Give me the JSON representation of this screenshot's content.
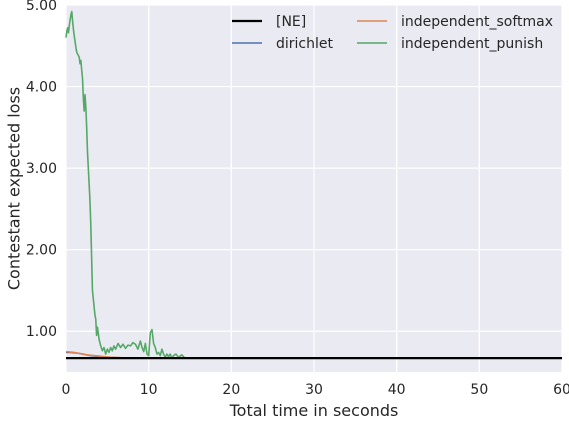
{
  "chart_data": {
    "type": "line",
    "xlabel": "Total time in seconds",
    "ylabel": "Contestant expected loss",
    "xlim": [
      0,
      60
    ],
    "ylim": [
      0.5,
      5.0
    ],
    "x_ticks": [
      0,
      10,
      20,
      30,
      40,
      50,
      60
    ],
    "x_tick_labels": [
      "0",
      "10",
      "20",
      "30",
      "40",
      "50",
      "60"
    ],
    "y_ticks": [
      1.0,
      2.0,
      3.0,
      4.0,
      5.0
    ],
    "y_tick_labels": [
      "1.00",
      "2.00",
      "3.00",
      "4.00",
      "5.00"
    ],
    "grid": true,
    "legend_position": "top-right",
    "legend_columns": 2,
    "background_color": "#eaeaf2",
    "series": [
      {
        "name": "[NE]",
        "color": "#000000",
        "x": [
          0,
          60
        ],
        "y": [
          0.67,
          0.67
        ]
      },
      {
        "name": "dirichlet",
        "color": "#4c72b0",
        "x": [
          0,
          0.5,
          1,
          1.5,
          2,
          2.5,
          3,
          3.5,
          4,
          4.5,
          5,
          5.5,
          6,
          6.5,
          7
        ],
        "y": [
          0.74,
          0.74,
          0.735,
          0.73,
          0.72,
          0.71,
          0.7,
          0.695,
          0.69,
          0.685,
          0.68,
          0.678,
          0.676,
          0.674,
          0.672
        ]
      },
      {
        "name": "independent_softmax",
        "color": "#dd8452",
        "x": [
          0,
          0.5,
          1,
          1.5,
          2,
          2.5,
          3,
          3.5,
          4,
          4.5,
          5,
          5.5,
          6,
          6.5,
          7
        ],
        "y": [
          0.75,
          0.745,
          0.74,
          0.73,
          0.72,
          0.71,
          0.705,
          0.7,
          0.695,
          0.69,
          0.685,
          0.68,
          0.678,
          0.676,
          0.674
        ]
      },
      {
        "name": "independent_punish",
        "color": "#55a868",
        "x": [
          0,
          0.1,
          0.2,
          0.3,
          0.4,
          0.5,
          0.6,
          0.7,
          0.8,
          0.9,
          1.0,
          1.1,
          1.2,
          1.3,
          1.4,
          1.5,
          1.6,
          1.7,
          1.8,
          1.9,
          2.0,
          2.1,
          2.2,
          2.3,
          2.4,
          2.5,
          2.6,
          2.7,
          2.8,
          2.9,
          3.0,
          3.1,
          3.2,
          3.3,
          3.4,
          3.5,
          3.6,
          3.7,
          3.8,
          3.9,
          4.0,
          4.2,
          4.4,
          4.6,
          4.8,
          5.0,
          5.2,
          5.4,
          5.6,
          5.8,
          6.0,
          6.3,
          6.6,
          6.9,
          7.2,
          7.5,
          7.8,
          8.1,
          8.4,
          8.7,
          9.0,
          9.2,
          9.4,
          9.6,
          9.8,
          10.0,
          10.2,
          10.4,
          10.6,
          10.8,
          11.0,
          11.2,
          11.4,
          11.6,
          11.8,
          12.0,
          12.2,
          12.4,
          12.6,
          12.8,
          13.0,
          13.3,
          13.6,
          14.0,
          14.3
        ],
        "y": [
          4.6,
          4.68,
          4.72,
          4.66,
          4.75,
          4.82,
          4.88,
          4.92,
          4.8,
          4.7,
          4.62,
          4.55,
          4.48,
          4.42,
          4.4,
          4.38,
          4.36,
          4.28,
          4.32,
          4.2,
          4.1,
          3.85,
          3.7,
          3.9,
          3.75,
          3.5,
          3.2,
          3.0,
          2.8,
          2.6,
          2.3,
          1.9,
          1.5,
          1.4,
          1.3,
          1.2,
          1.15,
          0.95,
          1.05,
          0.98,
          0.9,
          0.82,
          0.76,
          0.8,
          0.72,
          0.78,
          0.74,
          0.8,
          0.76,
          0.82,
          0.78,
          0.85,
          0.8,
          0.84,
          0.79,
          0.83,
          0.82,
          0.86,
          0.84,
          0.78,
          0.88,
          0.8,
          0.75,
          0.85,
          0.72,
          0.7,
          0.98,
          1.02,
          0.85,
          0.8,
          0.72,
          0.74,
          0.7,
          0.78,
          0.72,
          0.68,
          0.72,
          0.69,
          0.72,
          0.67,
          0.7,
          0.72,
          0.68,
          0.71,
          0.68
        ]
      }
    ]
  }
}
